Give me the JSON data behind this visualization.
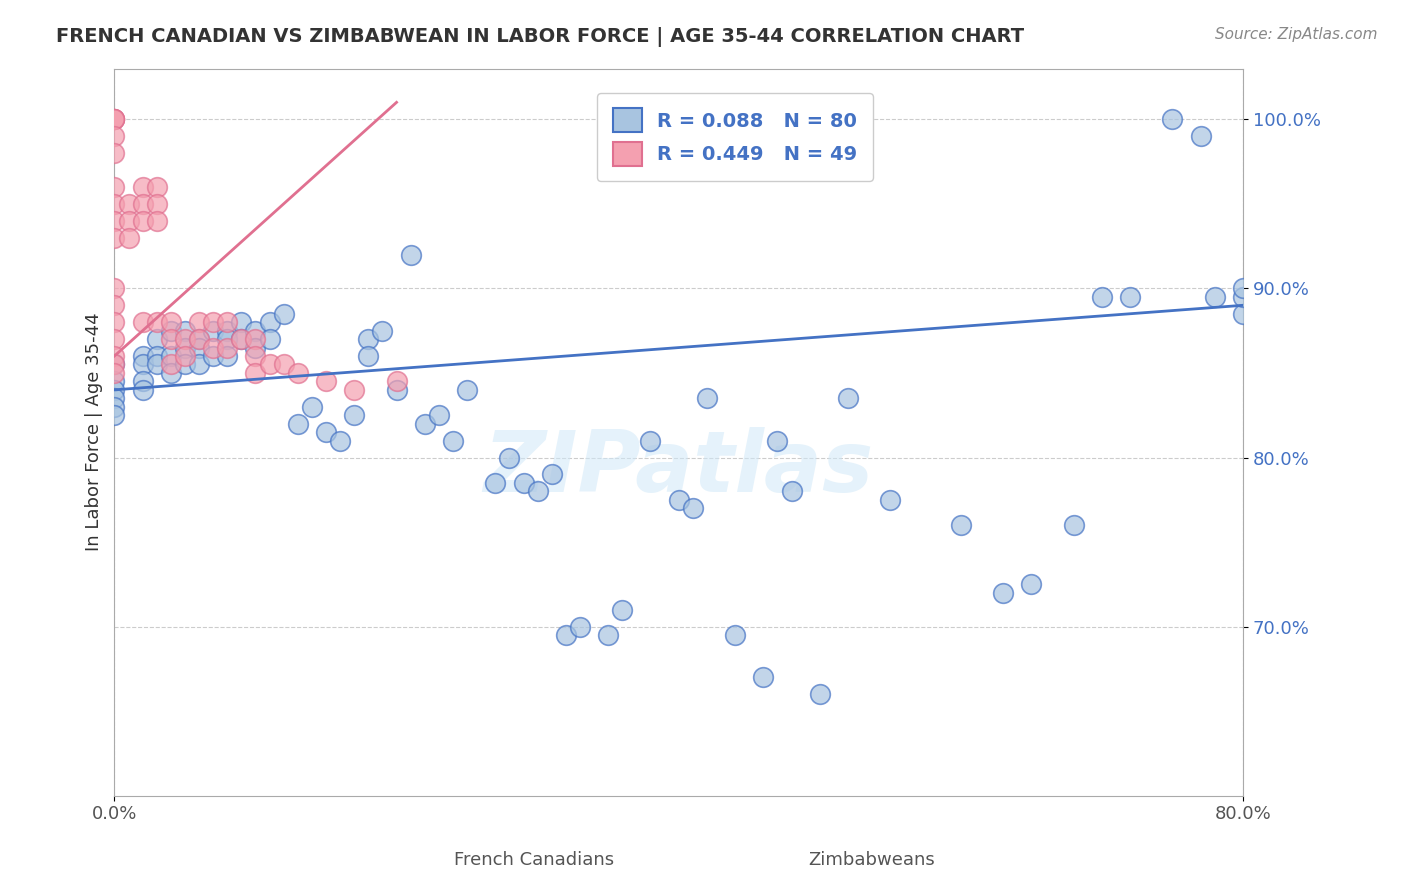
{
  "title": "FRENCH CANADIAN VS ZIMBABWEAN IN LABOR FORCE | AGE 35-44 CORRELATION CHART",
  "source": "Source: ZipAtlas.com",
  "xlabel_blue": "French Canadians",
  "xlabel_pink": "Zimbabweans",
  "ylabel": "In Labor Force | Age 35-44",
  "xlim": [
    0.0,
    0.8
  ],
  "ylim": [
    0.6,
    1.03
  ],
  "xticks": [
    0.0,
    0.2,
    0.4,
    0.6,
    0.8
  ],
  "xtick_labels": [
    "0.0%",
    "",
    "",
    "",
    "80.0%"
  ],
  "yticks": [
    0.7,
    0.8,
    0.9,
    1.0
  ],
  "ytick_labels": [
    "70.0%",
    "80.0%",
    "90.0%",
    "100.0%"
  ],
  "blue_R": 0.088,
  "blue_N": 80,
  "pink_R": 0.449,
  "pink_N": 49,
  "blue_color": "#a8c4e0",
  "pink_color": "#f4a0b0",
  "blue_line_color": "#4472c4",
  "pink_line_color": "#e07090",
  "watermark": "ZIPatlas",
  "blue_scatter_x": [
    0.0,
    0.0,
    0.0,
    0.0,
    0.0,
    0.0,
    0.02,
    0.02,
    0.02,
    0.02,
    0.03,
    0.03,
    0.03,
    0.04,
    0.04,
    0.04,
    0.05,
    0.05,
    0.05,
    0.06,
    0.06,
    0.06,
    0.07,
    0.07,
    0.08,
    0.08,
    0.08,
    0.09,
    0.09,
    0.1,
    0.1,
    0.11,
    0.11,
    0.12,
    0.13,
    0.14,
    0.15,
    0.16,
    0.17,
    0.18,
    0.18,
    0.19,
    0.2,
    0.21,
    0.22,
    0.23,
    0.24,
    0.25,
    0.27,
    0.28,
    0.29,
    0.3,
    0.31,
    0.32,
    0.33,
    0.35,
    0.36,
    0.38,
    0.4,
    0.41,
    0.42,
    0.44,
    0.46,
    0.47,
    0.48,
    0.5,
    0.52,
    0.55,
    0.6,
    0.63,
    0.65,
    0.68,
    0.7,
    0.72,
    0.75,
    0.77,
    0.78,
    0.8,
    0.8,
    0.8
  ],
  "blue_scatter_y": [
    0.855,
    0.845,
    0.84,
    0.835,
    0.83,
    0.825,
    0.86,
    0.855,
    0.845,
    0.84,
    0.87,
    0.86,
    0.855,
    0.875,
    0.86,
    0.85,
    0.875,
    0.865,
    0.855,
    0.87,
    0.865,
    0.855,
    0.875,
    0.86,
    0.875,
    0.87,
    0.86,
    0.88,
    0.87,
    0.875,
    0.865,
    0.88,
    0.87,
    0.885,
    0.82,
    0.83,
    0.815,
    0.81,
    0.825,
    0.87,
    0.86,
    0.875,
    0.84,
    0.92,
    0.82,
    0.825,
    0.81,
    0.84,
    0.785,
    0.8,
    0.785,
    0.78,
    0.79,
    0.695,
    0.7,
    0.695,
    0.71,
    0.81,
    0.775,
    0.77,
    0.835,
    0.695,
    0.67,
    0.81,
    0.78,
    0.66,
    0.835,
    0.775,
    0.76,
    0.72,
    0.725,
    0.76,
    0.895,
    0.895,
    1.0,
    0.99,
    0.895,
    0.885,
    0.895,
    0.9
  ],
  "pink_scatter_x": [
    0.0,
    0.0,
    0.0,
    0.0,
    0.0,
    0.0,
    0.0,
    0.0,
    0.0,
    0.0,
    0.0,
    0.0,
    0.0,
    0.0,
    0.0,
    0.0,
    0.0,
    0.01,
    0.01,
    0.01,
    0.02,
    0.02,
    0.02,
    0.02,
    0.03,
    0.03,
    0.03,
    0.03,
    0.04,
    0.04,
    0.04,
    0.05,
    0.05,
    0.06,
    0.06,
    0.07,
    0.07,
    0.08,
    0.08,
    0.09,
    0.1,
    0.1,
    0.1,
    0.11,
    0.12,
    0.13,
    0.15,
    0.17,
    0.2
  ],
  "pink_scatter_y": [
    1.0,
    1.0,
    1.0,
    1.0,
    0.99,
    0.98,
    0.96,
    0.95,
    0.94,
    0.93,
    0.9,
    0.89,
    0.88,
    0.87,
    0.86,
    0.855,
    0.85,
    0.95,
    0.94,
    0.93,
    0.96,
    0.95,
    0.94,
    0.88,
    0.96,
    0.95,
    0.94,
    0.88,
    0.88,
    0.87,
    0.855,
    0.87,
    0.86,
    0.88,
    0.87,
    0.88,
    0.865,
    0.88,
    0.865,
    0.87,
    0.87,
    0.86,
    0.85,
    0.855,
    0.855,
    0.85,
    0.845,
    0.84,
    0.845
  ],
  "blue_trend_x": [
    0.0,
    0.8
  ],
  "blue_trend_y": [
    0.84,
    0.89
  ],
  "pink_trend_x": [
    0.0,
    0.2
  ],
  "pink_trend_y": [
    0.86,
    1.01
  ],
  "legend_blue_label": "R = 0.088   N = 80",
  "legend_pink_label": "R = 0.449   N = 49",
  "background_color": "#ffffff",
  "grid_color": "#cccccc"
}
